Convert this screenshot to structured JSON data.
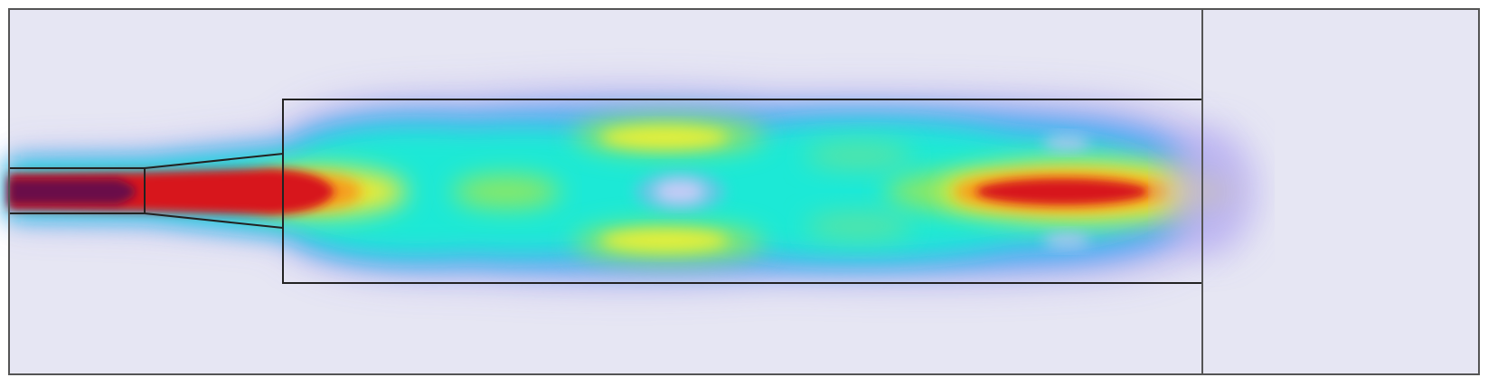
{
  "figure": {
    "description_free": true,
    "colors": {
      "background": "#e6e6f3",
      "outline": "#222222",
      "frame": "#555555",
      "colormap": [
        "#6a5acd",
        "#4fc3f7",
        "#1de9b6",
        "#9ae35a",
        "#f5ea2b",
        "#f59a1a",
        "#d7191c",
        "#5a0050"
      ]
    },
    "regions": [
      {
        "id": "input-waveguide"
      },
      {
        "id": "taper"
      },
      {
        "id": "mmi-section"
      },
      {
        "id": "output-domain"
      },
      {
        "id": "simulation-frame"
      }
    ]
  }
}
